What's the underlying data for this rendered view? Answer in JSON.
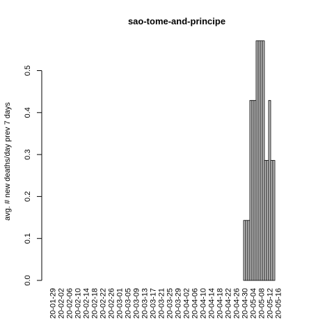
{
  "chart_data": {
    "type": "bar",
    "title": "sao-tome-and-principe",
    "xlabel": "",
    "ylabel": "avg. # new deaths/day prev  7  days",
    "ylim": [
      0,
      0.58
    ],
    "y_ticks": [
      "0.0",
      "0.1",
      "0.2",
      "0.3",
      "0.4",
      "0.5"
    ],
    "start_date": "2020-01-29",
    "x_tick_labels": [
      "20-01-29",
      "20-02-02",
      "20-02-06",
      "20-02-10",
      "20-02-14",
      "20-02-18",
      "20-02-22",
      "20-02-26",
      "20-03-01",
      "20-03-05",
      "20-03-09",
      "20-03-13",
      "20-03-17",
      "20-03-21",
      "20-03-25",
      "20-03-29",
      "20-04-02",
      "20-04-06",
      "20-04-10",
      "20-04-14",
      "20-04-18",
      "20-04-22",
      "20-04-26",
      "20-04-30",
      "20-05-04",
      "20-05-08",
      "20-05-12",
      "20-05-16"
    ],
    "values": [
      0,
      0,
      0,
      0,
      0,
      0,
      0,
      0,
      0,
      0,
      0,
      0,
      0,
      0,
      0,
      0,
      0,
      0,
      0,
      0,
      0,
      0,
      0,
      0,
      0,
      0,
      0,
      0,
      0,
      0,
      0,
      0,
      0,
      0,
      0,
      0,
      0,
      0,
      0,
      0,
      0,
      0,
      0,
      0,
      0,
      0,
      0,
      0,
      0,
      0,
      0,
      0,
      0,
      0,
      0,
      0,
      0,
      0,
      0,
      0,
      0,
      0,
      0,
      0,
      0,
      0,
      0,
      0,
      0,
      0,
      0,
      0,
      0,
      0,
      0,
      0,
      0,
      0,
      0,
      0,
      0,
      0,
      0,
      0,
      0,
      0,
      0,
      0,
      0,
      0,
      0,
      0,
      0.143,
      0.143,
      0.143,
      0.429,
      0.429,
      0.429,
      0.571,
      0.571,
      0.571,
      0.571,
      0.286,
      0.286,
      0.429,
      0.286,
      0.286
    ]
  }
}
